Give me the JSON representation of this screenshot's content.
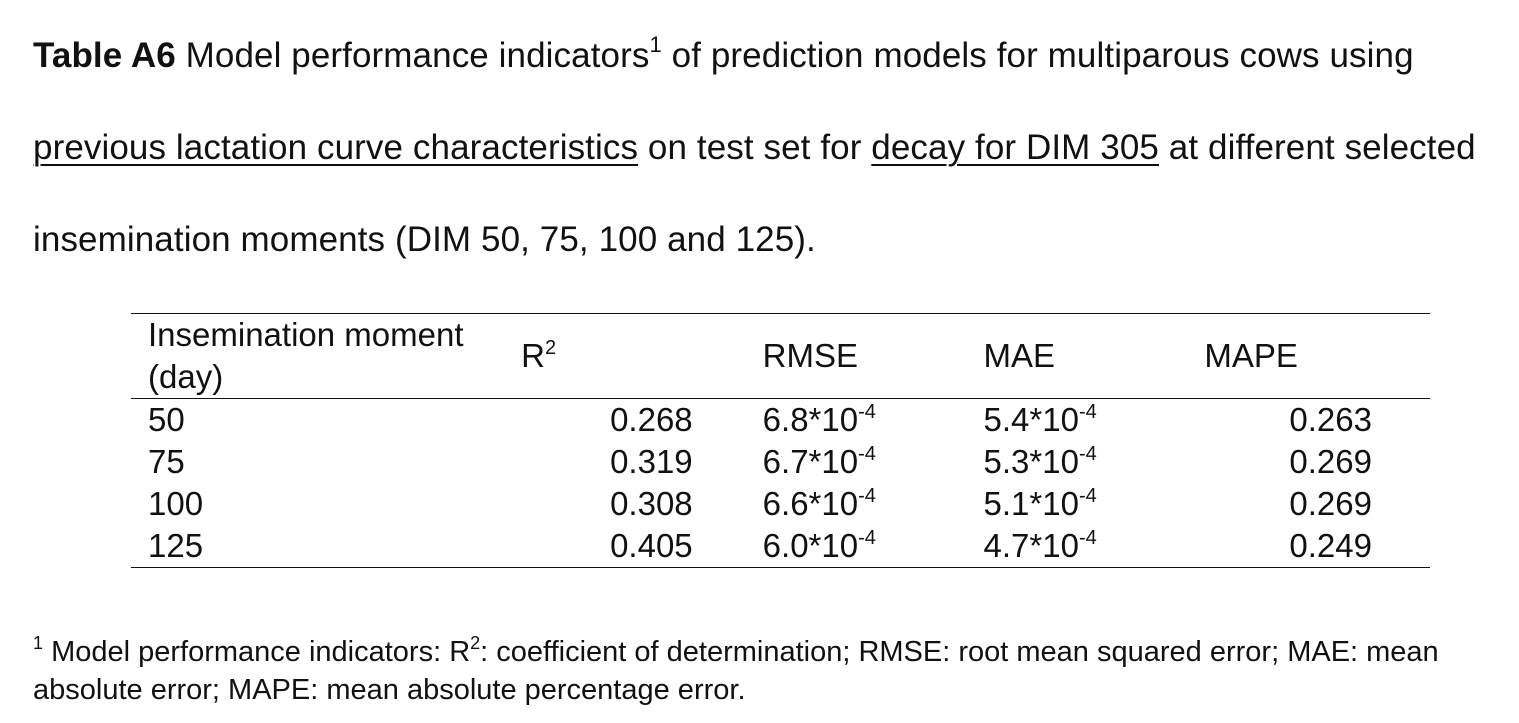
{
  "caption": {
    "label": "Table A6",
    "text_1": " Model performance indicators",
    "sup_1": "1",
    "text_2": " of prediction models for multiparous cows using ",
    "underline_1": "previous lactation curve characteristics",
    "text_3": " on test set for ",
    "underline_2": "decay for DIM 305",
    "text_4": " at different selected insemination moments (DIM 50, 75, 100 and 125)."
  },
  "table": {
    "headers": {
      "moment": "Insemination moment (day)",
      "r2_base": "R",
      "r2_sup": "2",
      "rmse": "RMSE",
      "mae": "MAE",
      "mape": "MAPE"
    },
    "rows": [
      {
        "moment": "50",
        "r2": "0.268",
        "rmse_base": "6.8*10",
        "rmse_exp": "-4",
        "mae_base": "5.4*10",
        "mae_exp": "-4",
        "mape": "0.263"
      },
      {
        "moment": "75",
        "r2": "0.319",
        "rmse_base": "6.7*10",
        "rmse_exp": "-4",
        "mae_base": "5.3*10",
        "mae_exp": "-4",
        "mape": "0.269"
      },
      {
        "moment": "100",
        "r2": "0.308",
        "rmse_base": "6.6*10",
        "rmse_exp": "-4",
        "mae_base": "5.1*10",
        "mae_exp": "-4",
        "mape": "0.269"
      },
      {
        "moment": "125",
        "r2": "0.405",
        "rmse_base": "6.0*10",
        "rmse_exp": "-4",
        "mae_base": "4.7*10",
        "mae_exp": "-4",
        "mape": "0.249"
      }
    ]
  },
  "footnote": {
    "marker": "1",
    "text_1": " Model performance indicators: R",
    "sup": "2",
    "text_2": ": coefficient of determination; RMSE: root mean squared error; MAE: mean absolute error; MAPE: mean absolute percentage error."
  }
}
